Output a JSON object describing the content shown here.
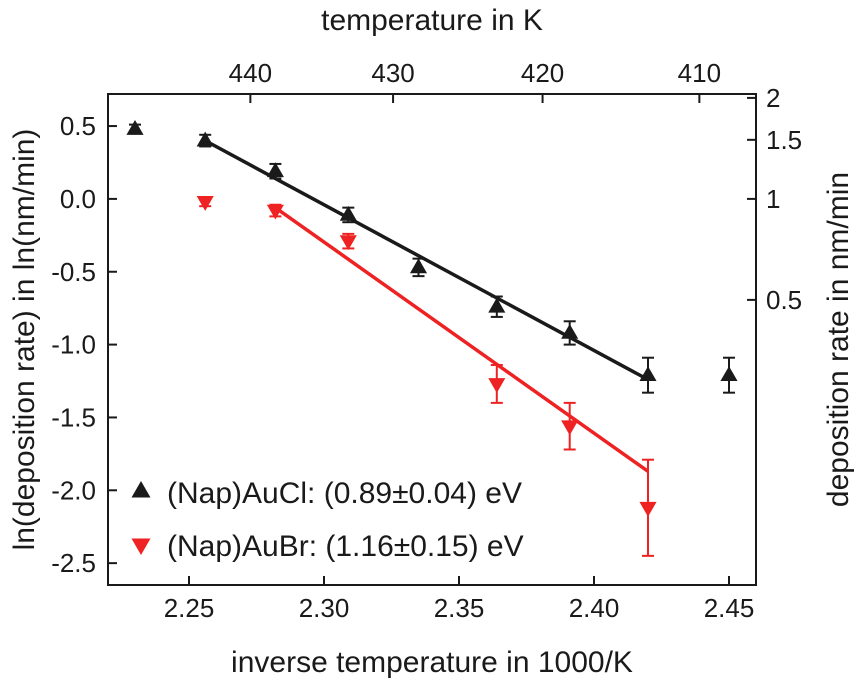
{
  "chart_data": {
    "type": "scatter",
    "title": "",
    "xlabel": "inverse temperature in 1000/K",
    "ylabel": "ln(deposition rate) in ln(nm/min)",
    "x2label": "temperature in K",
    "y2label": "deposition rate in nm/min",
    "xlim": [
      2.22,
      2.46
    ],
    "ylim": [
      -2.65,
      0.72
    ],
    "x_ticks": [
      2.25,
      2.3,
      2.35,
      2.4,
      2.45
    ],
    "x_tick_labels": [
      "2.25",
      "2.30",
      "2.35",
      "2.40",
      "2.45"
    ],
    "y_ticks": [
      0.5,
      0.0,
      -0.5,
      -1.0,
      -1.5,
      -2.0,
      -2.5
    ],
    "y_tick_labels": [
      "0.5",
      "0.0",
      "-0.5",
      "-1.0",
      "-1.5",
      "-2.0",
      "-2.5"
    ],
    "top_ticks_K": [
      440,
      430,
      420,
      410
    ],
    "top_tick_labels": [
      "440",
      "430",
      "420",
      "410"
    ],
    "right_ticks_rate": [
      2,
      1.5,
      1,
      0.5
    ],
    "right_tick_labels": [
      "2",
      "1.5",
      "1",
      "0.5"
    ],
    "grid": false,
    "legend_position": "bottom-left",
    "series": [
      {
        "name": "(Nap)AuCl: (0.89±0.04) eV",
        "marker": "triangle-up",
        "color": "#1a1a1a",
        "x": [
          2.23,
          2.256,
          2.282,
          2.309,
          2.335,
          2.364,
          2.391,
          2.42,
          2.45
        ],
        "y": [
          0.48,
          0.4,
          0.19,
          -0.11,
          -0.47,
          -0.74,
          -0.92,
          -1.21,
          -1.21
        ],
        "yerr": [
          0.03,
          0.04,
          0.05,
          0.05,
          0.06,
          0.07,
          0.08,
          0.12,
          0.12
        ],
        "fit": {
          "x": [
            2.256,
            2.42
          ],
          "y": [
            0.4,
            -1.24
          ]
        }
      },
      {
        "name": "(Nap)AuBr: (1.16±0.15) eV",
        "marker": "triangle-down",
        "color": "#ee2222",
        "x": [
          2.256,
          2.282,
          2.309,
          2.364,
          2.391,
          2.42
        ],
        "y": [
          -0.02,
          -0.08,
          -0.29,
          -1.27,
          -1.56,
          -2.12
        ],
        "yerr": [
          0.03,
          0.04,
          0.05,
          0.13,
          0.16,
          0.33
        ],
        "fit": {
          "x": [
            2.282,
            2.42
          ],
          "y": [
            -0.06,
            -1.87
          ]
        }
      }
    ]
  }
}
